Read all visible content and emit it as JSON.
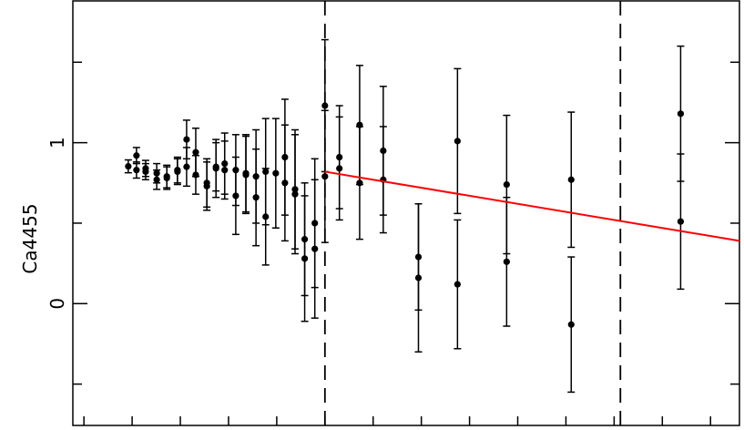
{
  "chart_data": {
    "type": "errorbar-scatter",
    "ylabel": "Ca4455",
    "xlim": [
      -0.23,
      13.6
    ],
    "xticks": [
      0,
      1,
      2,
      3,
      4,
      5,
      6,
      7,
      8,
      9,
      10,
      11,
      12,
      13
    ],
    "ylim": [
      -0.757,
      1.881
    ],
    "yticks": [
      0,
      1
    ],
    "yminorticks": [
      -0.5,
      0.5,
      1.5
    ],
    "series": [
      {
        "color": "#000000",
        "x": [
          0.92,
          1.09,
          1.09,
          1.28,
          1.28,
          1.51,
          1.51,
          1.72,
          1.72,
          1.94,
          1.94,
          2.13,
          2.13,
          2.32,
          2.32,
          2.55,
          2.55,
          2.74,
          2.74,
          2.92,
          2.92,
          3.15,
          3.15,
          3.36,
          3.36,
          3.57,
          3.57,
          3.77,
          3.77,
          3.98,
          4.17,
          4.17,
          4.38,
          4.38,
          4.58,
          4.58,
          4.79,
          4.79,
          5.0,
          5.0,
          5.3,
          5.3,
          5.72,
          5.72,
          6.21,
          6.21,
          6.94,
          6.94,
          7.75,
          7.75,
          8.77,
          8.77,
          10.11,
          10.11,
          12.38,
          12.38
        ],
        "values": [
          0.853,
          0.92,
          0.83,
          0.84,
          0.82,
          0.81,
          0.77,
          0.79,
          0.78,
          0.82,
          0.83,
          1.02,
          0.85,
          0.94,
          0.8,
          0.75,
          0.73,
          0.84,
          0.85,
          0.87,
          0.83,
          0.83,
          0.67,
          0.81,
          0.8,
          0.79,
          0.66,
          0.82,
          0.54,
          0.81,
          0.91,
          0.75,
          0.71,
          0.68,
          0.4,
          0.28,
          0.5,
          0.34,
          1.23,
          0.79,
          0.91,
          0.84,
          1.11,
          0.75,
          0.95,
          0.77,
          0.29,
          0.16,
          1.01,
          0.12,
          0.74,
          0.26,
          0.77,
          -0.13,
          1.18,
          0.51
        ],
        "errors": [
          0.04,
          0.05,
          0.05,
          0.05,
          0.05,
          0.06,
          0.06,
          0.07,
          0.07,
          0.08,
          0.08,
          0.12,
          0.12,
          0.15,
          0.12,
          0.15,
          0.15,
          0.18,
          0.15,
          0.19,
          0.18,
          0.22,
          0.24,
          0.24,
          0.24,
          0.29,
          0.3,
          0.33,
          0.3,
          0.34,
          0.36,
          0.36,
          0.37,
          0.37,
          0.35,
          0.39,
          0.4,
          0.43,
          0.41,
          0.41,
          0.32,
          0.32,
          0.37,
          0.35,
          0.4,
          0.33,
          0.33,
          0.46,
          0.45,
          0.4,
          0.43,
          0.4,
          0.42,
          0.42,
          0.42,
          0.42
        ]
      }
    ],
    "fit": {
      "color": "#ff0000",
      "x": [
        5.0,
        13.6
      ],
      "y": [
        0.82,
        0.39
      ]
    },
    "vlines": [
      5.0,
      11.13
    ]
  }
}
